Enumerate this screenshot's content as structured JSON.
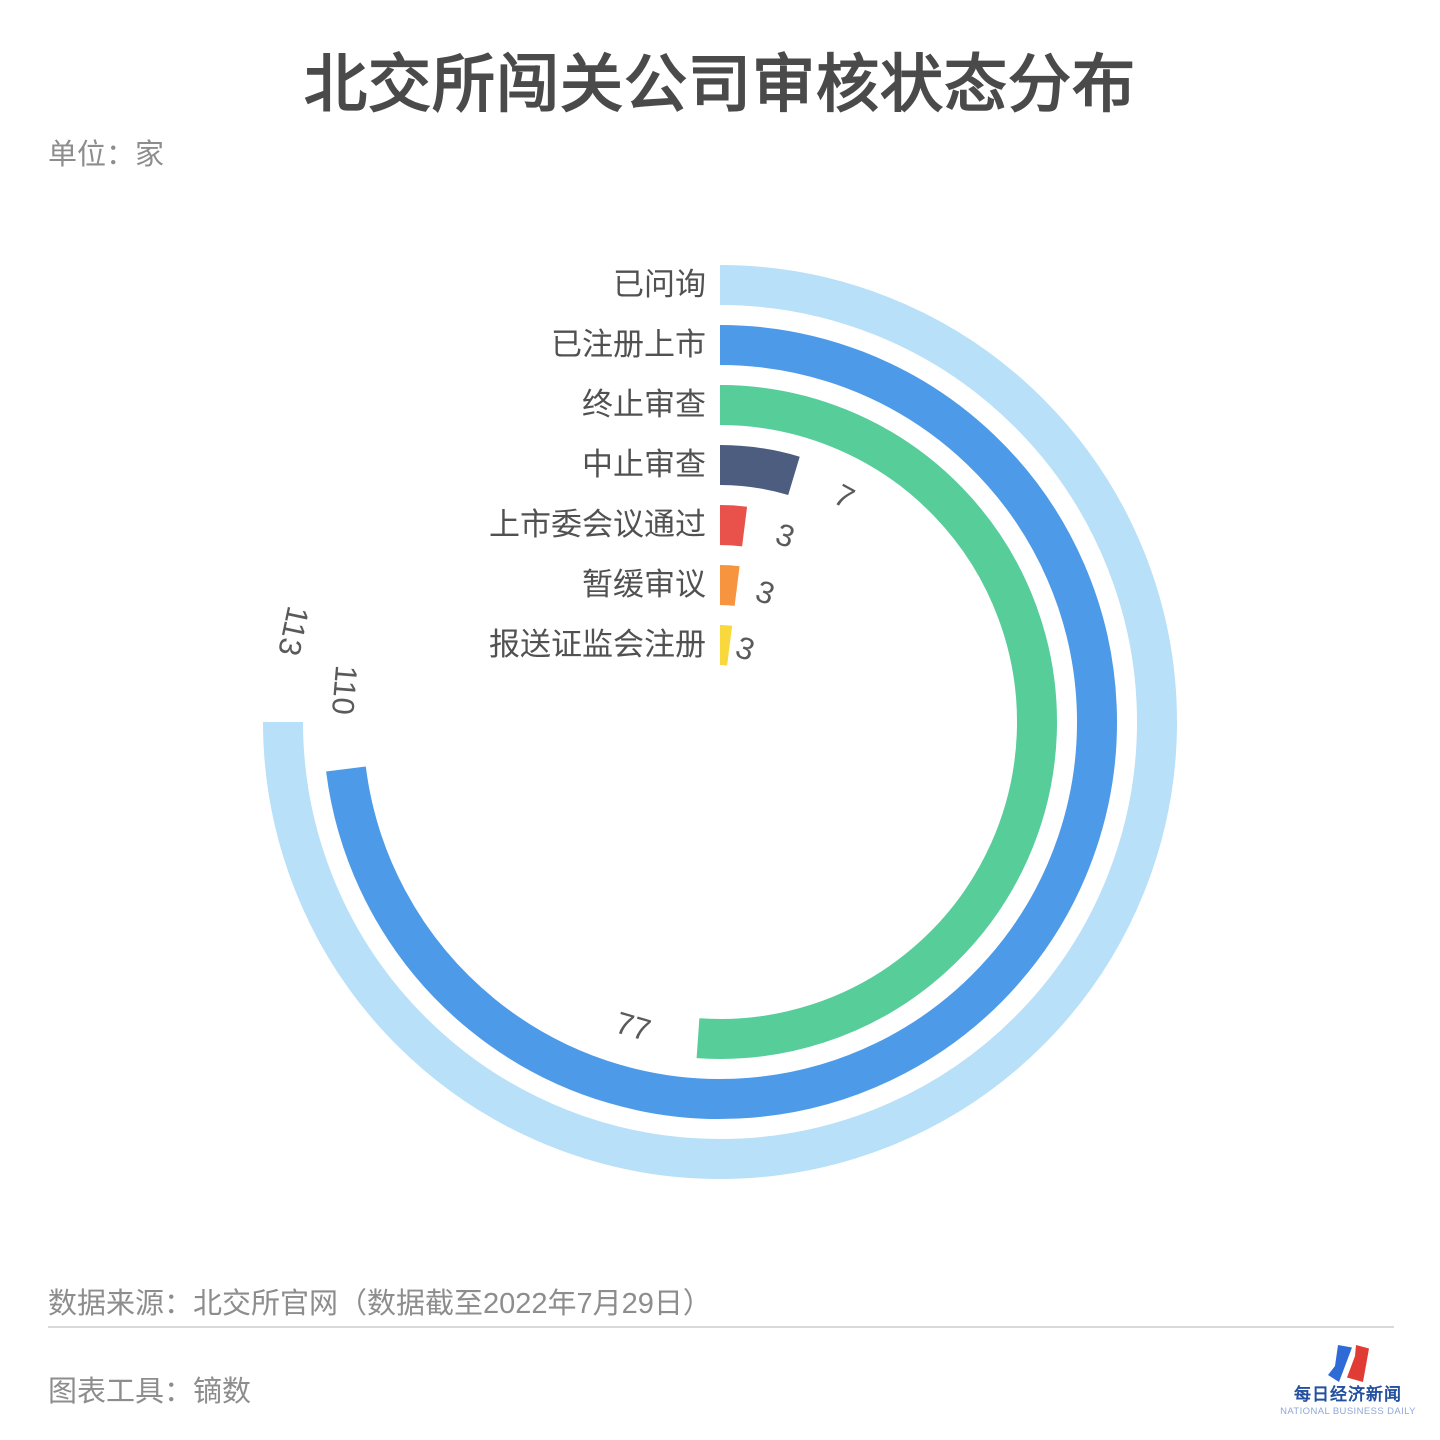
{
  "header": {
    "title": "北交所闯关公司审核状态分布",
    "unit_label": "单位：家"
  },
  "chart_data": {
    "type": "radial-bar",
    "title": "北交所闯关公司审核状态分布",
    "unit": "家",
    "categories": [
      "已问询",
      "已注册上市",
      "终止审查",
      "中止审查",
      "上市委会议通过",
      "暂缓审议",
      "报送证监会注册"
    ],
    "values": [
      113,
      110,
      77,
      7,
      3,
      3,
      3
    ],
    "colors": [
      "#b8e0f8",
      "#4d9ae9",
      "#57cd9a",
      "#4d5d80",
      "#e8524b",
      "#f6943f",
      "#f8d83d"
    ],
    "start_angle_deg": 0,
    "max_angle_deg": 270,
    "direction": "clockwise",
    "value_label_color": "#5a5a5a",
    "category_label_color": "#515151"
  },
  "footer": {
    "source": "数据来源：北交所官网（数据截至2022年7月29日）",
    "tool": "图表工具：镝数",
    "logo": {
      "cn": "每日经济新闻",
      "en": "NATIONAL BUSINESS DAILY",
      "mark_blue": "#2e6bd6",
      "mark_red": "#e03b34"
    }
  }
}
